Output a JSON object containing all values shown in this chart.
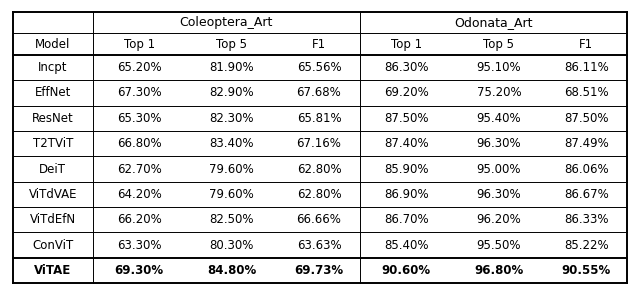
{
  "col_headers_row1": [
    "",
    "Coleoptera_Art",
    "",
    "",
    "Odonata_Art",
    "",
    ""
  ],
  "col_headers_row2": [
    "Model",
    "Top 1",
    "Top 5",
    "F1",
    "Top 1",
    "Top 5",
    "F1"
  ],
  "rows": [
    [
      "Incpt",
      "65.20%",
      "81.90%",
      "65.56%",
      "86.30%",
      "95.10%",
      "86.11%"
    ],
    [
      "EffNet",
      "67.30%",
      "82.90%",
      "67.68%",
      "69.20%",
      "75.20%",
      "68.51%"
    ],
    [
      "ResNet",
      "65.30%",
      "82.30%",
      "65.81%",
      "87.50%",
      "95.40%",
      "87.50%"
    ],
    [
      "T2TViT",
      "66.80%",
      "83.40%",
      "67.16%",
      "87.40%",
      "96.30%",
      "87.49%"
    ],
    [
      "DeiT",
      "62.70%",
      "79.60%",
      "62.80%",
      "85.90%",
      "95.00%",
      "86.06%"
    ],
    [
      "ViTdVAE",
      "64.20%",
      "79.60%",
      "62.80%",
      "86.90%",
      "96.30%",
      "86.67%"
    ],
    [
      "ViTdEfN",
      "66.20%",
      "82.50%",
      "66.66%",
      "86.70%",
      "96.20%",
      "86.33%"
    ],
    [
      "ConViT",
      "63.30%",
      "80.30%",
      "63.63%",
      "85.40%",
      "95.50%",
      "85.22%"
    ],
    [
      "ViTAE",
      "69.30%",
      "84.80%",
      "69.73%",
      "90.60%",
      "96.80%",
      "90.55%"
    ]
  ],
  "bold_row_index": 8,
  "figsize": [
    6.4,
    2.92
  ],
  "dpi": 100,
  "font_size": 8.5,
  "header1_fontsize": 9.0
}
